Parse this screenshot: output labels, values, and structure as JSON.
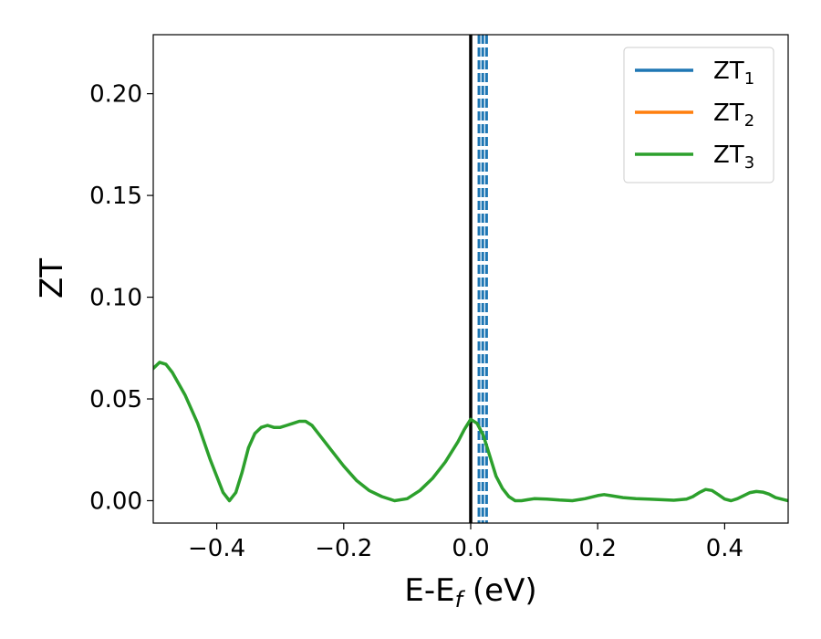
{
  "chart_data": {
    "type": "line",
    "title": "",
    "xlabel": {
      "main": "E-E",
      "sub": "f",
      "suffix": " (eV)"
    },
    "ylabel": "ZT",
    "xlim": [
      -0.5,
      0.5
    ],
    "ylim": [
      -0.011,
      0.229
    ],
    "xticks": [
      -0.4,
      -0.2,
      0.0,
      0.2,
      0.4
    ],
    "xtick_labels": [
      "−0.4",
      "−0.2",
      "0.0",
      "0.2",
      "0.4"
    ],
    "yticks": [
      0.0,
      0.05,
      0.1,
      0.15,
      0.2
    ],
    "ytick_labels": [
      "0.00",
      "0.05",
      "0.10",
      "0.15",
      "0.20"
    ],
    "grid": false,
    "legend_placement": "top-right",
    "legend": [
      {
        "main": "ZT",
        "sub": "1",
        "color": "#1f77b4"
      },
      {
        "main": "ZT",
        "sub": "2",
        "color": "#ff7f0e"
      },
      {
        "main": "ZT",
        "sub": "3",
        "color": "#2ca02c"
      }
    ],
    "vertical_lines": [
      {
        "x": 0.0,
        "style": "solid",
        "color": "#000000"
      },
      {
        "x": 0.013,
        "style": "dashed",
        "color": "#1f77b4"
      },
      {
        "x": 0.019,
        "style": "dashed",
        "color": "#1f77b4"
      },
      {
        "x": 0.025,
        "style": "dashed",
        "color": "#1f77b4"
      }
    ],
    "series": [
      {
        "name": "ZT₃",
        "color": "#2ca02c",
        "x": [
          -0.5,
          -0.49,
          -0.48,
          -0.47,
          -0.45,
          -0.43,
          -0.41,
          -0.39,
          -0.38,
          -0.37,
          -0.36,
          -0.35,
          -0.34,
          -0.33,
          -0.32,
          -0.31,
          -0.3,
          -0.29,
          -0.28,
          -0.27,
          -0.26,
          -0.25,
          -0.24,
          -0.22,
          -0.2,
          -0.18,
          -0.16,
          -0.14,
          -0.12,
          -0.1,
          -0.08,
          -0.06,
          -0.04,
          -0.02,
          -0.01,
          0.0,
          0.01,
          0.02,
          0.03,
          0.04,
          0.05,
          0.06,
          0.07,
          0.08,
          0.09,
          0.1,
          0.12,
          0.14,
          0.16,
          0.18,
          0.2,
          0.21,
          0.22,
          0.24,
          0.26,
          0.28,
          0.3,
          0.32,
          0.34,
          0.35,
          0.36,
          0.37,
          0.38,
          0.39,
          0.4,
          0.41,
          0.42,
          0.43,
          0.44,
          0.45,
          0.46,
          0.47,
          0.48,
          0.5
        ],
        "y": [
          0.065,
          0.068,
          0.067,
          0.063,
          0.052,
          0.038,
          0.02,
          0.004,
          0.0,
          0.004,
          0.014,
          0.026,
          0.033,
          0.036,
          0.037,
          0.036,
          0.036,
          0.037,
          0.038,
          0.039,
          0.039,
          0.037,
          0.033,
          0.025,
          0.017,
          0.01,
          0.005,
          0.002,
          0.0,
          0.001,
          0.005,
          0.011,
          0.019,
          0.029,
          0.035,
          0.04,
          0.038,
          0.032,
          0.022,
          0.012,
          0.006,
          0.002,
          0.0,
          0.0,
          0.0005,
          0.001,
          0.0008,
          0.0003,
          0.0,
          0.001,
          0.0025,
          0.003,
          0.0025,
          0.0015,
          0.001,
          0.0008,
          0.0005,
          0.0002,
          0.0008,
          0.002,
          0.004,
          0.0055,
          0.005,
          0.003,
          0.0008,
          0.0,
          0.001,
          0.0025,
          0.004,
          0.0045,
          0.0042,
          0.0032,
          0.0015,
          0.0
        ]
      }
    ]
  }
}
